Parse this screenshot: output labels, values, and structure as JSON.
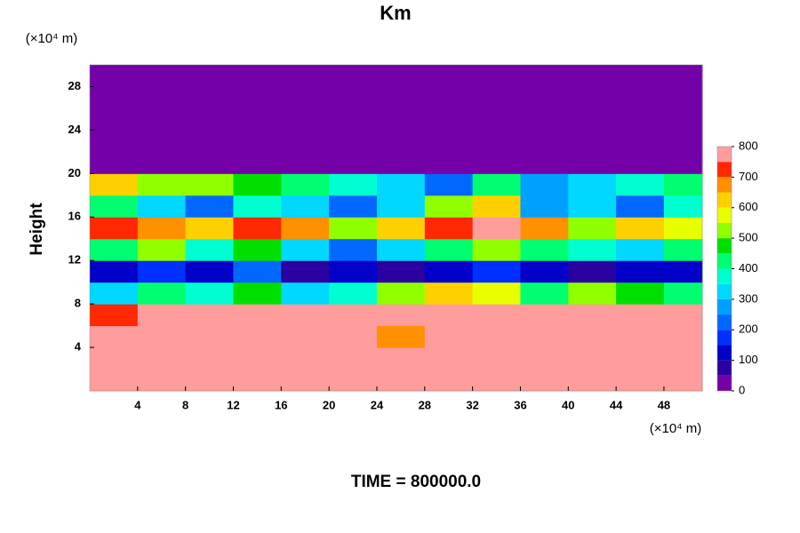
{
  "chart_data": {
    "type": "heatmap",
    "title": "Km",
    "y_label": "Height",
    "x_unit": "(×10⁴ m)",
    "y_unit": "(×10⁴ m)",
    "footer": "TIME = 800000.0",
    "xlim": [
      0,
      51.2
    ],
    "ylim": [
      0,
      30
    ],
    "xticks": [
      4,
      8,
      12,
      16,
      20,
      24,
      28,
      32,
      36,
      40,
      44,
      48
    ],
    "yticks": [
      4,
      8,
      12,
      16,
      20,
      24,
      28
    ],
    "x": [
      2,
      6,
      10,
      14,
      18,
      22,
      26,
      30,
      34,
      38,
      42,
      46,
      50
    ],
    "y": [
      1,
      3,
      5,
      7,
      9,
      11,
      13,
      15,
      17,
      19,
      21,
      23,
      25,
      27,
      29
    ],
    "z": [
      [
        800,
        800,
        800,
        800,
        800,
        800,
        800,
        800,
        800,
        800,
        800,
        800,
        800
      ],
      [
        800,
        800,
        800,
        800,
        800,
        800,
        800,
        800,
        800,
        800,
        800,
        800,
        800
      ],
      [
        800,
        800,
        800,
        800,
        800,
        800,
        650,
        800,
        800,
        800,
        800,
        800,
        800
      ],
      [
        700,
        750,
        800,
        800,
        800,
        800,
        800,
        800,
        800,
        800,
        800,
        800,
        750
      ],
      [
        300,
        400,
        350,
        450,
        300,
        350,
        500,
        600,
        550,
        400,
        500,
        450,
        400
      ],
      [
        100,
        150,
        100,
        200,
        50,
        100,
        50,
        100,
        150,
        100,
        50,
        100,
        100
      ],
      [
        400,
        500,
        350,
        450,
        300,
        200,
        300,
        400,
        500,
        400,
        350,
        300,
        400
      ],
      [
        700,
        650,
        600,
        700,
        650,
        500,
        600,
        700,
        750,
        650,
        500,
        600,
        550
      ],
      [
        400,
        300,
        200,
        350,
        300,
        200,
        300,
        500,
        600,
        250,
        300,
        200,
        350
      ],
      [
        600,
        500,
        500,
        450,
        400,
        350,
        300,
        200,
        400,
        250,
        300,
        350,
        400
      ],
      [
        0,
        0,
        0,
        0,
        0,
        0,
        0,
        0,
        0,
        0,
        0,
        0,
        0
      ],
      [
        0,
        0,
        0,
        0,
        0,
        0,
        0,
        0,
        0,
        0,
        0,
        0,
        0
      ],
      [
        0,
        0,
        0,
        0,
        0,
        0,
        0,
        0,
        0,
        0,
        0,
        0,
        0
      ],
      [
        0,
        0,
        0,
        0,
        0,
        0,
        0,
        0,
        0,
        0,
        0,
        0,
        0
      ],
      [
        0,
        0,
        0,
        0,
        0,
        0,
        0,
        0,
        0,
        0,
        0,
        0,
        0
      ]
    ],
    "levels": [
      0,
      50,
      100,
      150,
      200,
      250,
      300,
      350,
      400,
      450,
      500,
      550,
      600,
      650,
      700,
      750,
      800
    ],
    "colors": [
      "#7400a8",
      "#2a00a0",
      "#0000c8",
      "#0030ff",
      "#0068ff",
      "#00a0ff",
      "#00d8ff",
      "#00ffd0",
      "#00ff70",
      "#00e000",
      "#90ff00",
      "#e8ff00",
      "#ffd000",
      "#ff9000",
      "#ff2800",
      "#ff9c9c"
    ],
    "colorbar_ticks": [
      0,
      100,
      200,
      300,
      400,
      500,
      600,
      700,
      800
    ]
  }
}
